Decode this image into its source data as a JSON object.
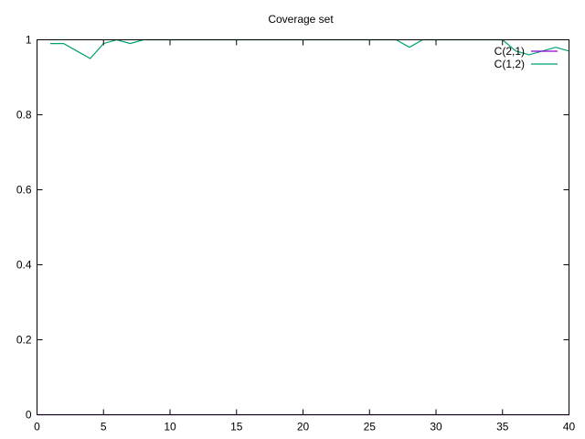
{
  "chart_data": {
    "type": "line",
    "title": "Coverage set",
    "xlabel": "",
    "ylabel": "",
    "xlim": [
      0,
      40
    ],
    "ylim": [
      0,
      1
    ],
    "xticks": [
      "0",
      "5",
      "10",
      "15",
      "20",
      "25",
      "30",
      "35",
      "40"
    ],
    "yticks": [
      "0",
      "0.2",
      "0.4",
      "0.6",
      "0.8",
      "1"
    ],
    "grid": false,
    "legend_position": "top-right",
    "series": [
      {
        "name": "C(2,1)",
        "color": "#9400d3",
        "x": [
          0,
          1,
          2,
          3,
          4,
          5,
          6,
          7,
          8,
          9,
          10,
          11,
          12,
          13,
          14,
          15,
          16,
          17,
          18,
          19,
          20,
          21,
          22,
          23,
          24,
          25,
          26,
          27,
          28,
          29,
          30,
          31,
          32,
          33,
          34,
          35,
          36,
          37,
          38,
          39,
          40
        ],
        "y": [
          0,
          0,
          0,
          0,
          0,
          0,
          0,
          0,
          0,
          0,
          0,
          0,
          0,
          0,
          0,
          0,
          0,
          0,
          0,
          0,
          0,
          0,
          0,
          0,
          0,
          0,
          0,
          0,
          0,
          0,
          0,
          0,
          0,
          0,
          0,
          0,
          0,
          0,
          0,
          0,
          0
        ]
      },
      {
        "name": "C(1,2)",
        "color": "#009e73",
        "x": [
          1,
          2,
          3,
          4,
          5,
          6,
          7,
          8,
          9,
          10,
          11,
          12,
          13,
          14,
          15,
          16,
          17,
          18,
          19,
          20,
          21,
          22,
          23,
          24,
          25,
          26,
          27,
          28,
          29,
          30,
          31,
          32,
          33,
          34,
          35,
          36,
          37,
          38,
          39,
          40
        ],
        "y": [
          0.99,
          0.99,
          0.97,
          0.95,
          0.99,
          1,
          0.99,
          1,
          1,
          1,
          1,
          1,
          1,
          1,
          1,
          1,
          1,
          1,
          1,
          1,
          1,
          1,
          1,
          1,
          1,
          1,
          1,
          0.98,
          1,
          1,
          1,
          1,
          1,
          1,
          1,
          0.97,
          0.96,
          0.97,
          0.98,
          0.97
        ]
      }
    ]
  }
}
